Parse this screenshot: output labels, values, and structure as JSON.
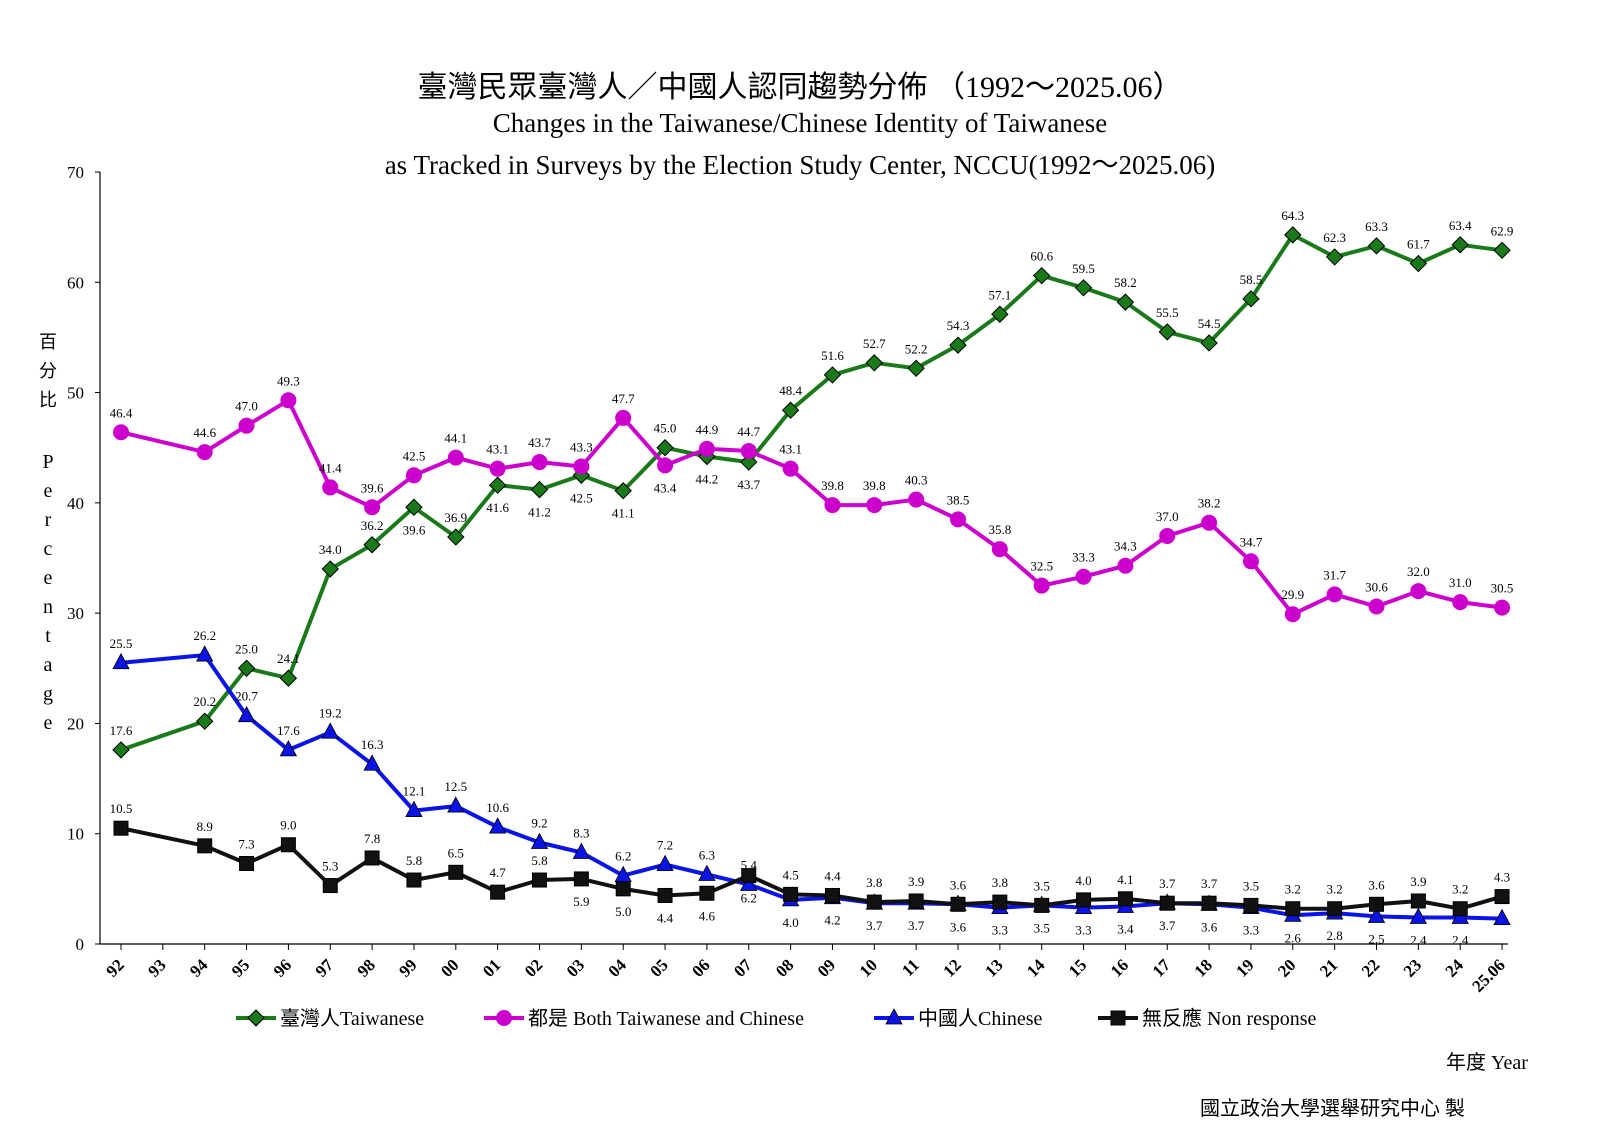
{
  "chart_data": {
    "type": "line",
    "title": "臺灣民眾臺灣人／中國人認同趨勢分佈 （1992～2025.06）",
    "subtitle_line1": "Changes in the Taiwanese/Chinese Identity of Taiwanese",
    "subtitle_line2": "as Tracked in Surveys by the Election Study Center, NCCU(1992～2025.06)",
    "ylabel_zh": "百分比",
    "ylabel_en": "Percentage",
    "xlabel": "年度 Year",
    "source": "國立政治大學選舉研究中心 製",
    "ylim": [
      0,
      70
    ],
    "yticks": [
      "0",
      "10",
      "20",
      "30",
      "40",
      "50",
      "60",
      "70"
    ],
    "x": [
      "92",
      "93",
      "94",
      "95",
      "96",
      "97",
      "98",
      "99",
      "00",
      "01",
      "02",
      "03",
      "04",
      "05",
      "06",
      "07",
      "08",
      "09",
      "10",
      "11",
      "12",
      "13",
      "14",
      "15",
      "16",
      "17",
      "18",
      "19",
      "20",
      "21",
      "22",
      "23",
      "24",
      "25.06"
    ],
    "legend_position": "bottom",
    "series": [
      {
        "name": "臺灣人Taiwanese",
        "color": "#1a7a1a",
        "marker": "diamond",
        "values": [
          17.6,
          null,
          20.2,
          25.0,
          24.1,
          34.0,
          36.2,
          39.6,
          36.9,
          41.6,
          41.2,
          42.5,
          41.1,
          45.0,
          44.2,
          43.7,
          48.4,
          51.6,
          52.7,
          52.2,
          54.3,
          57.1,
          60.6,
          59.5,
          58.2,
          55.5,
          54.5,
          58.5,
          64.3,
          62.3,
          63.3,
          61.7,
          63.4,
          62.9
        ]
      },
      {
        "name": "都是 Both Taiwanese and Chinese",
        "color": "#cc00cc",
        "marker": "circle",
        "values": [
          46.4,
          null,
          44.6,
          47.0,
          49.3,
          41.4,
          39.6,
          42.5,
          44.1,
          43.1,
          43.7,
          43.3,
          47.7,
          43.4,
          44.9,
          44.7,
          43.1,
          39.8,
          39.8,
          40.3,
          38.5,
          35.8,
          32.5,
          33.3,
          34.3,
          37.0,
          38.2,
          34.7,
          29.9,
          31.7,
          30.6,
          32.0,
          31.0,
          30.5
        ]
      },
      {
        "name": "中國人Chinese",
        "color": "#0a14e6",
        "marker": "triangle",
        "values": [
          25.5,
          null,
          26.2,
          20.7,
          17.6,
          19.2,
          16.3,
          12.1,
          12.5,
          10.6,
          9.2,
          8.3,
          6.2,
          7.2,
          6.3,
          5.4,
          4.0,
          4.2,
          3.7,
          3.7,
          3.6,
          3.3,
          3.5,
          3.3,
          3.4,
          3.7,
          3.6,
          3.3,
          2.6,
          2.8,
          2.5,
          2.4,
          2.4,
          2.3
        ]
      },
      {
        "name": "無反應 Non response",
        "color": "#111111",
        "marker": "square",
        "values": [
          10.5,
          null,
          8.9,
          7.3,
          9.0,
          5.3,
          7.8,
          5.8,
          6.5,
          4.7,
          5.8,
          5.9,
          5.0,
          4.4,
          4.6,
          6.2,
          4.5,
          4.4,
          3.8,
          3.9,
          3.6,
          3.8,
          3.5,
          4.0,
          4.1,
          3.7,
          3.7,
          3.5,
          3.2,
          3.2,
          3.6,
          3.9,
          3.2,
          4.3
        ]
      }
    ]
  }
}
